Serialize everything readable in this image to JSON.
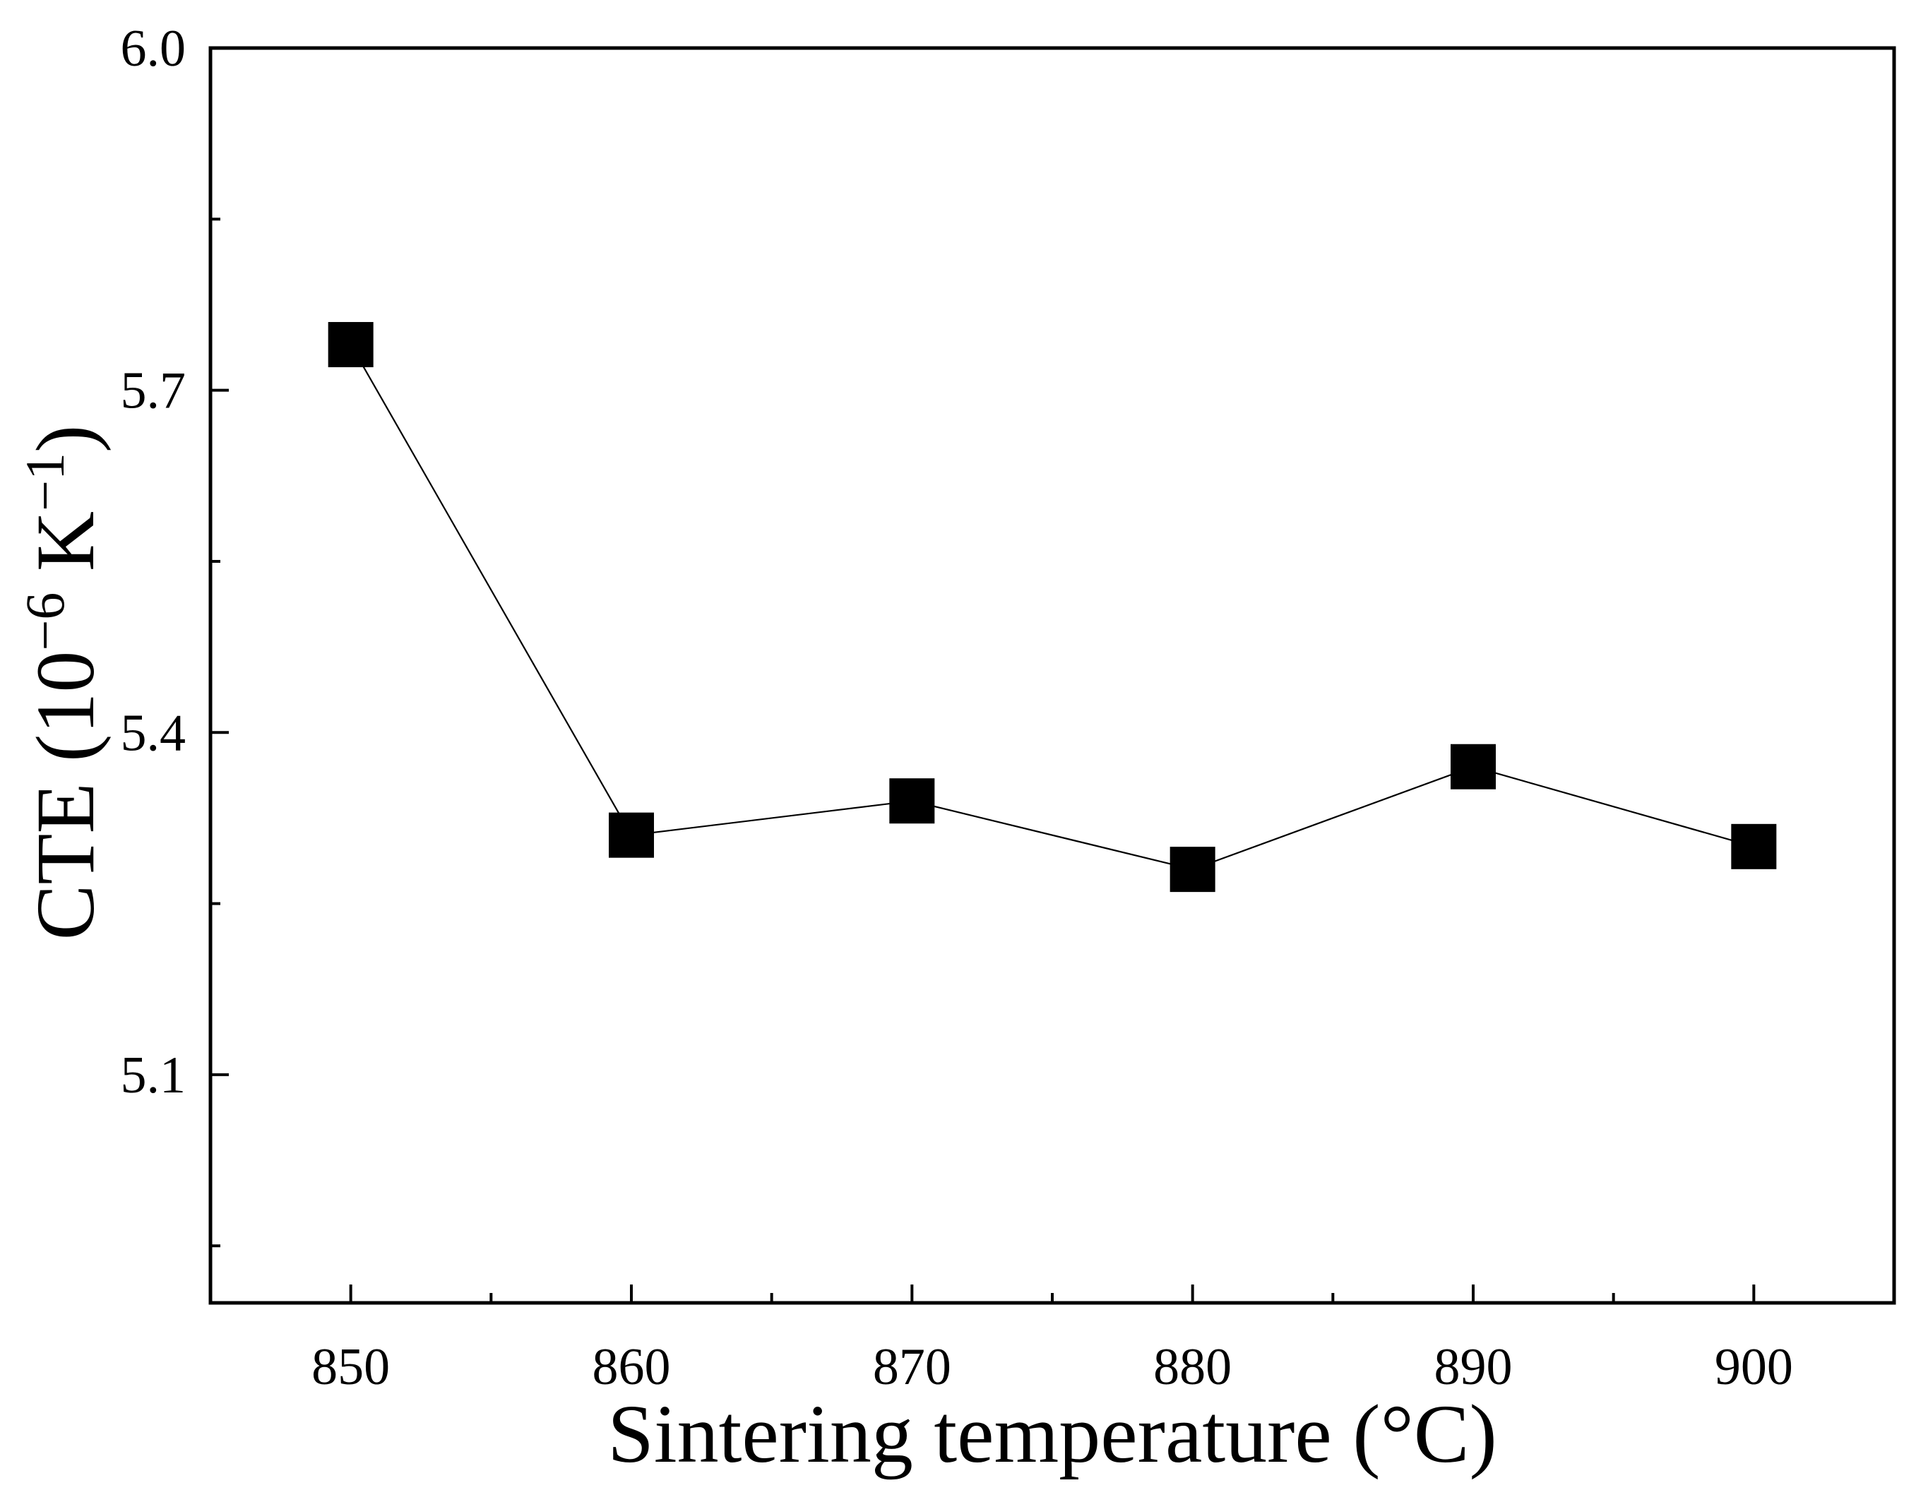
{
  "chart_data": {
    "type": "line",
    "title": "",
    "xlabel": "Sintering temperature (°C)",
    "ylabel": {
      "prefix": "CTE (10",
      "exp1": "−6",
      "middle": " K",
      "exp2": "−1",
      "suffix": ")"
    },
    "xlim": [
      845,
      905
    ],
    "ylim": [
      4.9,
      6.0
    ],
    "xticks": [
      850,
      860,
      870,
      880,
      890,
      900
    ],
    "xtick_labels": [
      "850",
      "860",
      "870",
      "880",
      "890",
      "900"
    ],
    "xminor": [
      855,
      865,
      875,
      885,
      895
    ],
    "yticks": [
      5.1,
      5.4,
      5.7,
      6.0
    ],
    "ytick_labels": [
      "5.1",
      "5.4",
      "5.7",
      "6.0"
    ],
    "yminor": [
      4.95,
      5.25,
      5.55,
      5.85
    ],
    "grid": false,
    "series": [
      {
        "name": "CTE",
        "marker": "square",
        "x": [
          850,
          860,
          870,
          880,
          890,
          900
        ],
        "y": [
          5.74,
          5.31,
          5.34,
          5.28,
          5.37,
          5.3
        ]
      }
    ]
  },
  "colors": {
    "line": "#000000",
    "marker": "#000000",
    "axis": "#000000",
    "background": "#ffffff"
  }
}
